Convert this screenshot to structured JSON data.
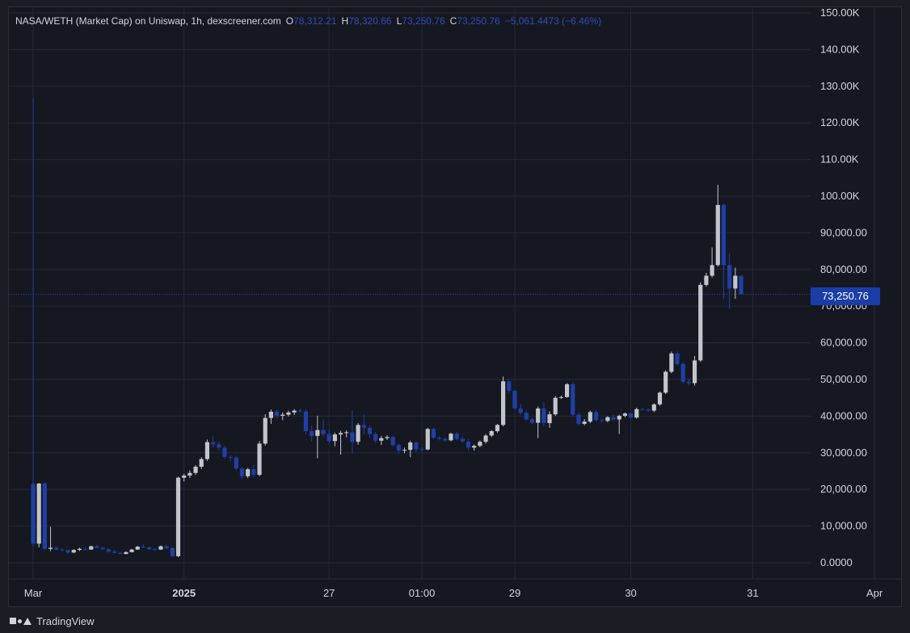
{
  "legend": {
    "pair": "NASA/WETH (Market Cap) on Uniswap, 1h, dexscreener.com",
    "o_label": "O",
    "o_value": "78,312.21",
    "h_label": "H",
    "h_value": "78,320.66",
    "l_label": "L",
    "l_value": "73,250.76",
    "c_label": "C",
    "c_value": "73,250.76",
    "change": "−5,061.4473 (−6.46%)"
  },
  "last_price_label": "73,250.76",
  "footer": {
    "brand": "TradingView",
    "logo_icon": "tradingview-logo-icon"
  },
  "colors": {
    "up": "#c3c5cc",
    "down": "#1f3fa8",
    "grid": "#24273a",
    "axis_text": "#d1d4dc",
    "last_price_line": "#2a46b0"
  },
  "chart_data": {
    "type": "candlestick",
    "ylim": [
      0,
      150000
    ],
    "y_ticks": [
      0,
      10000,
      20000,
      30000,
      40000,
      50000,
      60000,
      70000,
      80000,
      90000,
      100000,
      110000,
      120000,
      130000,
      140000,
      150000
    ],
    "y_tick_labels": [
      "0.0000",
      "10,000.00",
      "20,000.00",
      "30,000.00",
      "40,000.00",
      "50,000.00",
      "60,000.00",
      "70,000.00",
      "80,000.00",
      "90,000.00",
      "100.00K",
      "110.00K",
      "120.00K",
      "130.00K",
      "140.00K",
      "150.00K"
    ],
    "x_ticks": [
      {
        "label": "Mar",
        "bold": false,
        "i": 0
      },
      {
        "label": "2025",
        "bold": true,
        "i": 26
      },
      {
        "label": "27",
        "bold": false,
        "i": 51
      },
      {
        "label": "01:00",
        "bold": false,
        "i": 67
      },
      {
        "label": "29",
        "bold": false,
        "i": 83
      },
      {
        "label": "30",
        "bold": false,
        "i": 103
      },
      {
        "label": "31",
        "bold": false,
        "i": 124
      },
      {
        "label": "Apr",
        "bold": false,
        "i": 145
      }
    ],
    "candles": [
      [
        21500,
        126800,
        4500,
        5200
      ],
      [
        5200,
        21800,
        4200,
        21600
      ],
      [
        21600,
        22000,
        3500,
        3800
      ],
      [
        3800,
        9800,
        3200,
        4100
      ],
      [
        4100,
        4500,
        3300,
        3600
      ],
      [
        3600,
        3900,
        3000,
        3400
      ],
      [
        3400,
        3600,
        2500,
        2800
      ],
      [
        2800,
        3700,
        2600,
        3500
      ],
      [
        3500,
        4100,
        3200,
        3800
      ],
      [
        3800,
        4300,
        3400,
        3600
      ],
      [
        3600,
        4600,
        3500,
        4500
      ],
      [
        4500,
        4900,
        3900,
        4100
      ],
      [
        4100,
        4300,
        3500,
        3700
      ],
      [
        3700,
        3900,
        2800,
        3000
      ],
      [
        3000,
        3500,
        2500,
        2700
      ],
      [
        2700,
        3000,
        2300,
        2400
      ],
      [
        2400,
        3100,
        2300,
        2900
      ],
      [
        2900,
        3800,
        2800,
        3600
      ],
      [
        3600,
        4600,
        3500,
        4400
      ],
      [
        4400,
        5000,
        4000,
        4200
      ],
      [
        4200,
        4500,
        3500,
        3700
      ],
      [
        3700,
        4100,
        3300,
        3600
      ],
      [
        3600,
        4700,
        3500,
        4500
      ],
      [
        4500,
        4900,
        3800,
        4000
      ],
      [
        4000,
        4300,
        1500,
        1800
      ],
      [
        1800,
        23500,
        1500,
        23200
      ],
      [
        23200,
        24300,
        22200,
        23800
      ],
      [
        23800,
        25200,
        23100,
        24500
      ],
      [
        24500,
        26600,
        24000,
        26200
      ],
      [
        26200,
        28800,
        25600,
        28300
      ],
      [
        28300,
        33600,
        27800,
        32900
      ],
      [
        32900,
        34500,
        31500,
        32300
      ],
      [
        32300,
        33000,
        30600,
        31400
      ],
      [
        31400,
        32000,
        28300,
        28900
      ],
      [
        28900,
        29400,
        27600,
        28700
      ],
      [
        28700,
        29200,
        25200,
        25700
      ],
      [
        25700,
        26100,
        22800,
        23600
      ],
      [
        23600,
        25900,
        23100,
        25500
      ],
      [
        25500,
        26700,
        23300,
        24000
      ],
      [
        24000,
        33200,
        23600,
        32500
      ],
      [
        32500,
        40500,
        32000,
        39500
      ],
      [
        39500,
        41800,
        37900,
        41200
      ],
      [
        41200,
        41700,
        39400,
        40100
      ],
      [
        40100,
        41000,
        38900,
        40400
      ],
      [
        40400,
        41500,
        39900,
        41000
      ],
      [
        41000,
        41900,
        40300,
        41500
      ],
      [
        41500,
        42000,
        40900,
        41300
      ],
      [
        41300,
        41800,
        35000,
        35900
      ],
      [
        35900,
        37400,
        33200,
        34600
      ],
      [
        34600,
        40100,
        28500,
        36200
      ],
      [
        36200,
        39100,
        34500,
        35100
      ],
      [
        35100,
        36400,
        32500,
        33200
      ],
      [
        33200,
        35500,
        31800,
        35000
      ],
      [
        35000,
        36000,
        29500,
        35400
      ],
      [
        35400,
        36100,
        34200,
        35600
      ],
      [
        35600,
        41500,
        29700,
        33000
      ],
      [
        33000,
        38100,
        32200,
        37600
      ],
      [
        37600,
        40500,
        34900,
        36800
      ],
      [
        36800,
        37400,
        34100,
        35100
      ],
      [
        35100,
        35700,
        32700,
        33300
      ],
      [
        33300,
        34600,
        32100,
        34000
      ],
      [
        34000,
        34800,
        33500,
        34300
      ],
      [
        34300,
        34700,
        31700,
        32100
      ],
      [
        32100,
        32600,
        29700,
        30600
      ],
      [
        30600,
        31400,
        29900,
        30800
      ],
      [
        30800,
        33300,
        28800,
        32800
      ],
      [
        32800,
        33100,
        30200,
        31000
      ],
      [
        31000,
        31500,
        30300,
        30900
      ],
      [
        30900,
        36800,
        30700,
        36500
      ],
      [
        36500,
        36900,
        33700,
        34100
      ],
      [
        34100,
        34500,
        33400,
        33800
      ],
      [
        33800,
        34200,
        33000,
        33400
      ],
      [
        33400,
        35500,
        33100,
        35200
      ],
      [
        35200,
        35700,
        33400,
        33800
      ],
      [
        33800,
        34400,
        32700,
        33100
      ],
      [
        33100,
        33800,
        30700,
        31400
      ],
      [
        31400,
        32300,
        30600,
        31900
      ],
      [
        31900,
        33400,
        31500,
        33000
      ],
      [
        33000,
        35100,
        32500,
        34700
      ],
      [
        34700,
        36200,
        34300,
        35900
      ],
      [
        35900,
        37900,
        35500,
        37600
      ],
      [
        37600,
        50800,
        37200,
        49500
      ],
      [
        49500,
        50200,
        46400,
        46900
      ],
      [
        46900,
        47300,
        41700,
        42100
      ],
      [
        42100,
        43200,
        40300,
        40900
      ],
      [
        40900,
        41500,
        38700,
        39100
      ],
      [
        39100,
        39500,
        37900,
        38200
      ],
      [
        38200,
        42600,
        34000,
        42100
      ],
      [
        42100,
        43800,
        37200,
        38100
      ],
      [
        38100,
        41300,
        36800,
        40500
      ],
      [
        40500,
        45500,
        40100,
        45000
      ],
      [
        45000,
        45600,
        44700,
        45200
      ],
      [
        45200,
        49000,
        45000,
        48700
      ],
      [
        48700,
        49300,
        39900,
        40400
      ],
      [
        40400,
        41000,
        37400,
        37900
      ],
      [
        37900,
        39200,
        37500,
        38500
      ],
      [
        38500,
        41500,
        38100,
        41100
      ],
      [
        41100,
        41600,
        38500,
        38900
      ],
      [
        38900,
        39300,
        38300,
        38700
      ],
      [
        38700,
        40000,
        38300,
        39700
      ],
      [
        39700,
        40300,
        38700,
        39100
      ],
      [
        39100,
        40400,
        35100,
        40100
      ],
      [
        40100,
        41000,
        39700,
        40700
      ],
      [
        40700,
        41000,
        39300,
        39600
      ],
      [
        39600,
        42300,
        39300,
        41900
      ],
      [
        41900,
        42300,
        41600,
        41800
      ],
      [
        41800,
        42100,
        41200,
        41500
      ],
      [
        41500,
        43500,
        41100,
        43200
      ],
      [
        43200,
        46700,
        42800,
        46400
      ],
      [
        46400,
        52500,
        46000,
        52100
      ],
      [
        52100,
        57600,
        51700,
        57100
      ],
      [
        57100,
        57600,
        53800,
        54200
      ],
      [
        54200,
        54700,
        48900,
        49400
      ],
      [
        49400,
        50200,
        48400,
        49000
      ],
      [
        49000,
        56400,
        48300,
        55200
      ],
      [
        55200,
        76500,
        54800,
        75800
      ],
      [
        75800,
        79100,
        75300,
        78300
      ],
      [
        78300,
        86000,
        77800,
        81200
      ],
      [
        81200,
        103100,
        80800,
        97600
      ],
      [
        97600,
        98000,
        72100,
        81200
      ],
      [
        81200,
        84300,
        69300,
        74800
      ],
      [
        74800,
        80500,
        72000,
        78300
      ],
      [
        78312,
        78321,
        73251,
        73251
      ]
    ]
  }
}
